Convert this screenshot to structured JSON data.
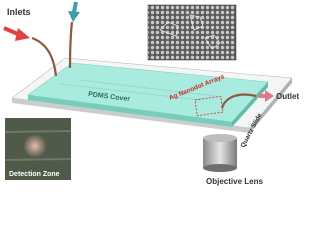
{
  "labels": {
    "inlets": "Inlets",
    "outlet": "Outlet",
    "pdms_cover": "PDMS Cover",
    "ag_nanodot_arrays": "Ag Nanodot Arrays",
    "quartz_slide": "Quartz Slide",
    "detection_zone": "Detection Zone",
    "objective_lens": "Objective Lens"
  }
}
